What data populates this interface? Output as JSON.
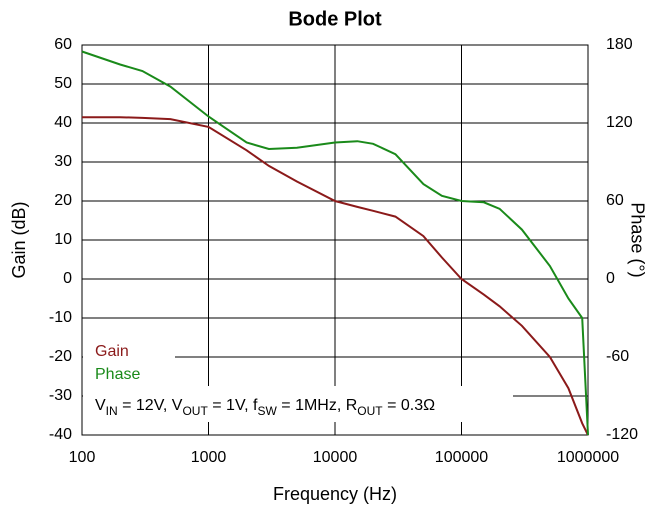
{
  "chart_data": {
    "type": "line",
    "title": "Bode Plot",
    "xlabel": "Frequency (Hz)",
    "ylabel": "Gain (dB)",
    "y2label": "Phase (°)",
    "xscale": "log",
    "grid": true,
    "x": [
      100,
      200,
      300,
      500,
      1000,
      2000,
      3000,
      5000,
      10000,
      15000,
      20000,
      30000,
      50000,
      70000,
      100000,
      150000,
      200000,
      300000,
      500000,
      700000,
      900000,
      1000000
    ],
    "series": [
      {
        "name": "Gain",
        "color": "#8b1a1a",
        "axis": "y",
        "values": [
          41.5,
          41.5,
          41.3,
          41,
          39,
          33,
          29,
          25,
          20,
          18.5,
          17.5,
          16,
          11,
          5.5,
          0,
          -4,
          -7,
          -12,
          -20,
          -28,
          -37,
          -40
        ]
      },
      {
        "name": "Phase",
        "color": "#1a8a1a",
        "axis": "y2",
        "values": [
          175,
          165,
          160,
          148,
          125,
          105,
          100,
          101,
          105,
          106,
          104,
          96,
          73,
          64,
          60,
          59,
          54,
          38,
          10,
          -15,
          -30,
          -120
        ]
      }
    ],
    "xlim": [
      100,
      1000000
    ],
    "xticks": [
      100,
      1000,
      10000,
      100000,
      1000000
    ],
    "ylim": [
      -40,
      60
    ],
    "yticks": [
      60,
      50,
      40,
      30,
      20,
      10,
      0,
      -10,
      -20,
      -30,
      -40
    ],
    "y2lim": [
      -120,
      180
    ],
    "y2ticks": [
      180,
      120,
      60,
      0,
      -60,
      -120
    ],
    "annotation": [
      "V",
      "IN",
      " = 12V, V",
      "OUT",
      " = 1V, f",
      "SW",
      " = 1MHz, R",
      "OUT",
      " = 0.3Ω"
    ]
  }
}
